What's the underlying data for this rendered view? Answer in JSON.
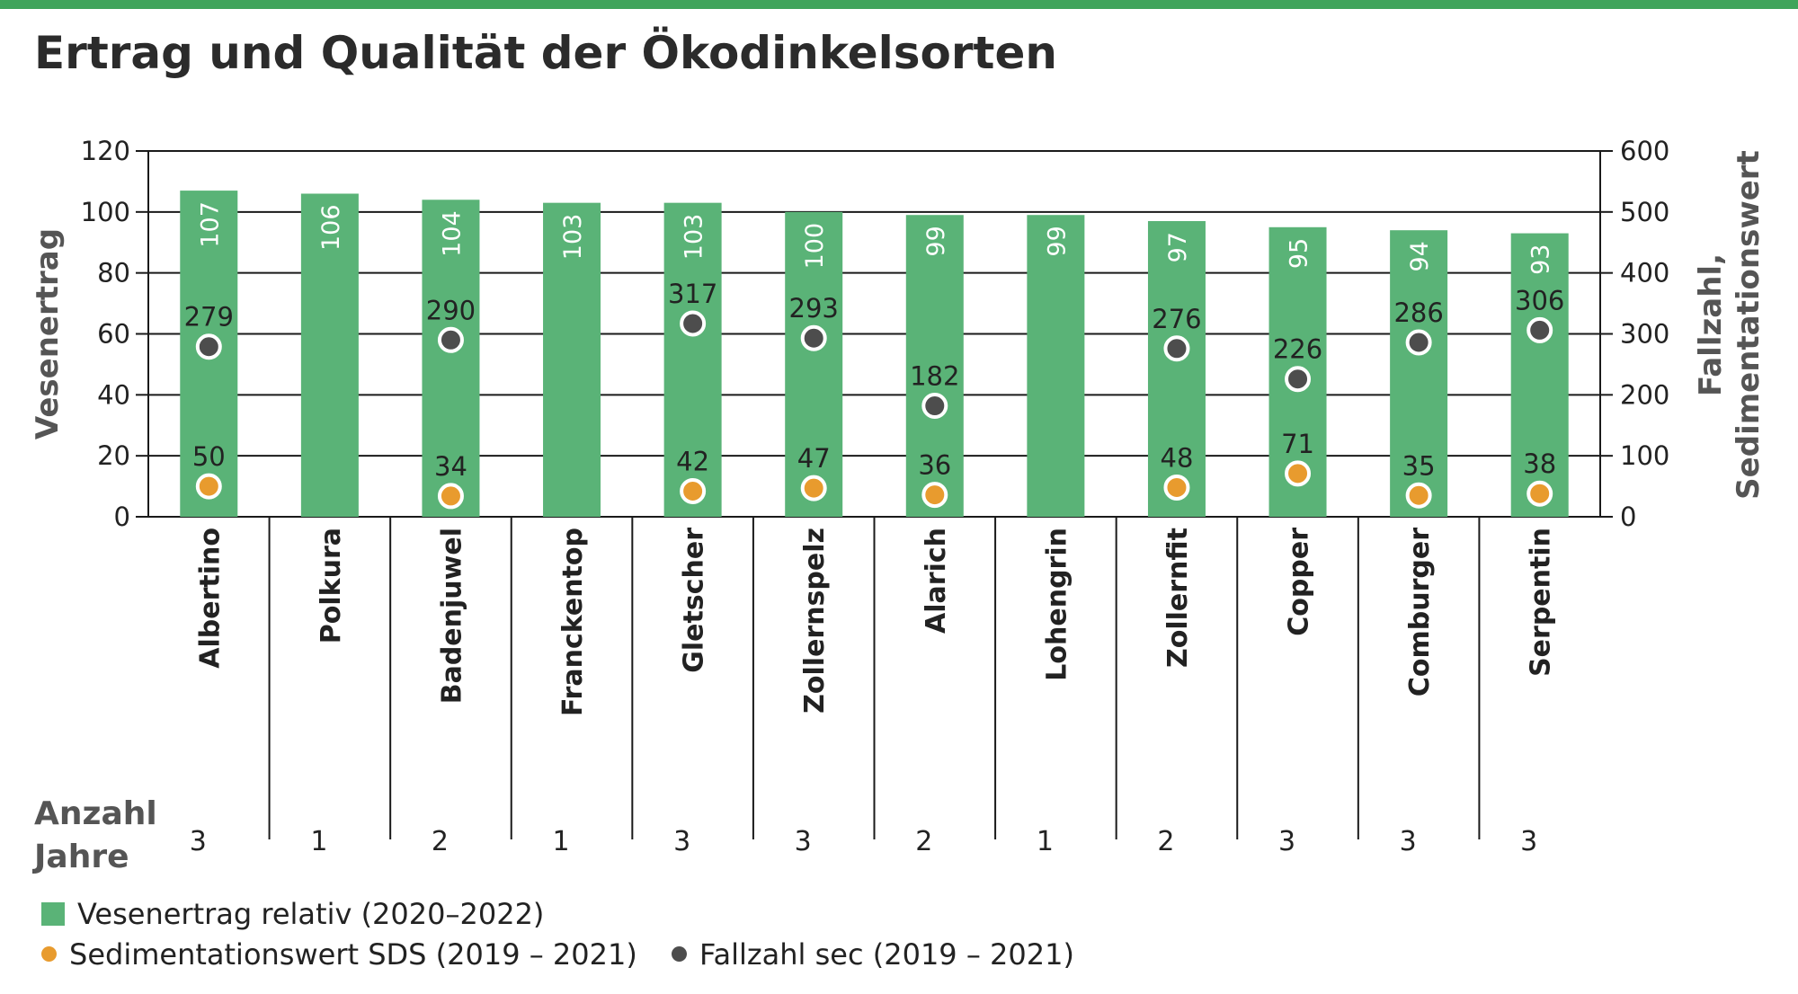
{
  "header": {
    "title": "Ertrag und Qualität der Ökodinkelsorten"
  },
  "colors": {
    "accent": "#3fa45b",
    "bar": "#5ab377",
    "sds": "#e89b2e",
    "fallzahl": "#4d4d4d"
  },
  "chart_data": {
    "type": "bar",
    "categories": [
      "Albertino",
      "Polkura",
      "Badenjuwel",
      "Franckentop",
      "Gletscher",
      "Zollernspelz",
      "Alarich",
      "Lohengrin",
      "Zollernfit",
      "Copper",
      "Comburger",
      "Serpentin"
    ],
    "series": [
      {
        "name": "Vesenertrag relativ (2020–2022)",
        "axis": "left",
        "kind": "bar",
        "values": [
          107,
          106,
          104,
          103,
          103,
          100,
          99,
          99,
          97,
          95,
          94,
          93
        ]
      },
      {
        "name": "Sedimentationswert SDS (2019 – 2021)",
        "axis": "right",
        "kind": "point",
        "values": [
          50,
          null,
          34,
          null,
          42,
          47,
          36,
          null,
          48,
          71,
          35,
          38
        ]
      },
      {
        "name": "Fallzahl sec (2019 – 2021)",
        "axis": "right",
        "kind": "point",
        "values": [
          279,
          null,
          290,
          null,
          317,
          293,
          182,
          null,
          276,
          226,
          286,
          306
        ]
      }
    ],
    "years": [
      3,
      1,
      2,
      1,
      3,
      3,
      2,
      1,
      2,
      3,
      3,
      3
    ],
    "ylabel": "Vesenertrag",
    "ylabel_right": [
      "Fallzahl,",
      "Sedimentationswert"
    ],
    "years_label": [
      "Anzahl",
      "Jahre"
    ],
    "ylim": [
      0,
      120
    ],
    "ylim_right": [
      0,
      600
    ],
    "yticks": [
      0,
      20,
      40,
      60,
      80,
      100,
      120
    ],
    "yticks_right": [
      0,
      100,
      200,
      300,
      400,
      500,
      600
    ],
    "grid": true
  }
}
